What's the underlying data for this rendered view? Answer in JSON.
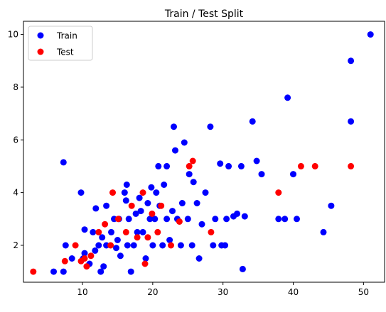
{
  "chart_data": {
    "type": "scatter",
    "title": "Train / Test Split",
    "xlabel": "",
    "ylabel": "",
    "xlim": [
      1.6,
      53.0
    ],
    "ylim": [
      0.6,
      10.5
    ],
    "xticks": [
      10,
      20,
      30,
      40,
      50
    ],
    "yticks": [
      2,
      4,
      6,
      8,
      10
    ],
    "grid": false,
    "legend": {
      "placement": "top-left"
    },
    "series": [
      {
        "name": "Train",
        "color": "#0000ff",
        "points": [
          [
            5.9,
            1.0
          ],
          [
            7.3,
            1.0
          ],
          [
            7.3,
            5.15
          ],
          [
            7.6,
            2.0
          ],
          [
            8.5,
            1.5
          ],
          [
            9.8,
            4.0
          ],
          [
            10.1,
            1.5
          ],
          [
            10.3,
            2.6
          ],
          [
            10.3,
            1.7
          ],
          [
            11.0,
            1.3
          ],
          [
            11.5,
            2.5
          ],
          [
            11.8,
            1.8
          ],
          [
            11.9,
            3.4
          ],
          [
            12.3,
            2.0
          ],
          [
            12.6,
            1.0
          ],
          [
            12.8,
            2.3
          ],
          [
            13.0,
            1.2
          ],
          [
            13.4,
            2.0
          ],
          [
            13.4,
            3.5
          ],
          [
            14.1,
            2.5
          ],
          [
            14.5,
            3.0
          ],
          [
            14.8,
            1.9
          ],
          [
            15.0,
            2.2
          ],
          [
            15.2,
            3.0
          ],
          [
            15.4,
            1.6
          ],
          [
            16.0,
            4.0
          ],
          [
            16.2,
            3.7
          ],
          [
            16.3,
            4.3
          ],
          [
            16.4,
            2.0
          ],
          [
            16.6,
            3.0
          ],
          [
            16.9,
            1.0
          ],
          [
            17.3,
            2.0
          ],
          [
            17.6,
            3.2
          ],
          [
            17.8,
            2.5
          ],
          [
            18.1,
            3.8
          ],
          [
            18.3,
            3.3
          ],
          [
            18.6,
            2.5
          ],
          [
            19.0,
            1.5
          ],
          [
            19.3,
            3.6
          ],
          [
            19.6,
            3.0
          ],
          [
            19.8,
            4.2
          ],
          [
            20.0,
            2.0
          ],
          [
            20.3,
            3.0
          ],
          [
            20.5,
            4.0
          ],
          [
            20.8,
            5.0
          ],
          [
            21.0,
            3.5
          ],
          [
            21.4,
            2.0
          ],
          [
            21.6,
            4.3
          ],
          [
            22.0,
            3.0
          ],
          [
            22.0,
            5.0
          ],
          [
            22.4,
            2.2
          ],
          [
            22.8,
            3.3
          ],
          [
            23.0,
            6.5
          ],
          [
            23.2,
            5.6
          ],
          [
            23.5,
            3.0
          ],
          [
            24.0,
            2.0
          ],
          [
            24.2,
            3.6
          ],
          [
            24.5,
            5.9
          ],
          [
            25.0,
            3.0
          ],
          [
            25.2,
            4.7
          ],
          [
            25.6,
            2.0
          ],
          [
            25.8,
            4.4
          ],
          [
            26.3,
            3.6
          ],
          [
            26.6,
            1.5
          ],
          [
            27.0,
            2.8
          ],
          [
            27.5,
            4.0
          ],
          [
            28.2,
            6.5
          ],
          [
            28.6,
            2.0
          ],
          [
            28.9,
            3.0
          ],
          [
            29.6,
            5.1
          ],
          [
            29.8,
            2.0
          ],
          [
            30.3,
            2.0
          ],
          [
            30.5,
            3.0
          ],
          [
            30.8,
            5.0
          ],
          [
            31.5,
            3.1
          ],
          [
            32.0,
            3.2
          ],
          [
            32.6,
            5.0
          ],
          [
            32.8,
            1.1
          ],
          [
            33.1,
            3.1
          ],
          [
            34.2,
            6.7
          ],
          [
            34.8,
            5.2
          ],
          [
            35.5,
            4.7
          ],
          [
            37.9,
            3.0
          ],
          [
            38.8,
            3.0
          ],
          [
            39.2,
            7.6
          ],
          [
            40.0,
            4.7
          ],
          [
            40.5,
            3.0
          ],
          [
            44.3,
            2.5
          ],
          [
            45.4,
            3.5
          ],
          [
            48.2,
            6.7
          ],
          [
            48.2,
            9.0
          ],
          [
            51.0,
            10.0
          ]
        ]
      },
      {
        "name": "Test",
        "color": "#ff0000",
        "points": [
          [
            3.0,
            1.0
          ],
          [
            7.5,
            1.4
          ],
          [
            9.0,
            2.0
          ],
          [
            9.8,
            1.4
          ],
          [
            10.3,
            1.5
          ],
          [
            10.6,
            1.2
          ],
          [
            11.2,
            1.6
          ],
          [
            12.3,
            2.5
          ],
          [
            13.2,
            2.8
          ],
          [
            14.0,
            2.0
          ],
          [
            14.3,
            4.0
          ],
          [
            15.1,
            3.0
          ],
          [
            16.2,
            2.5
          ],
          [
            17.0,
            3.5
          ],
          [
            17.8,
            2.3
          ],
          [
            18.6,
            4.0
          ],
          [
            18.9,
            1.3
          ],
          [
            19.3,
            2.3
          ],
          [
            19.9,
            3.2
          ],
          [
            20.7,
            2.5
          ],
          [
            21.2,
            3.5
          ],
          [
            22.6,
            2.0
          ],
          [
            23.8,
            2.9
          ],
          [
            25.2,
            5.0
          ],
          [
            25.7,
            5.2
          ],
          [
            28.3,
            2.5
          ],
          [
            37.9,
            4.0
          ],
          [
            41.1,
            5.0
          ],
          [
            43.1,
            5.0
          ],
          [
            48.2,
            5.0
          ]
        ]
      }
    ]
  }
}
